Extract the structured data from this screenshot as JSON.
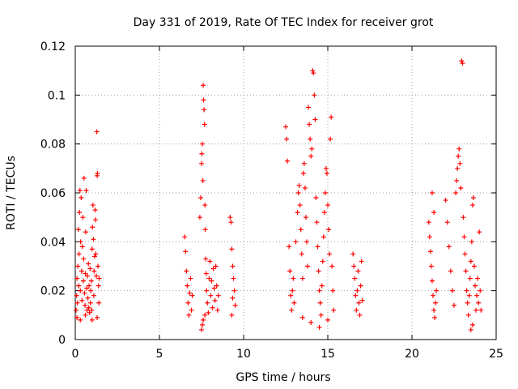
{
  "chart_data": {
    "type": "scatter",
    "title": "Day 331 of 2019, Rate Of TEC Index for receiver grot",
    "xlabel": "GPS time / hours",
    "ylabel": "ROTI / TECUs",
    "xlim": [
      0,
      25
    ],
    "ylim": [
      0,
      0.12
    ],
    "x_ticks": [
      0,
      5,
      10,
      15,
      20,
      25
    ],
    "y_ticks": [
      0,
      0.02,
      0.04,
      0.06,
      0.08,
      0.1,
      0.12
    ],
    "x_tick_labels": [
      "0",
      "5",
      "10",
      "15",
      "20",
      "25"
    ],
    "y_tick_labels": [
      "0",
      "0.02",
      "0.04",
      "0.06",
      "0.08",
      "0.1",
      "0.12"
    ],
    "grid": true,
    "marker": "+",
    "marker_color": "#ff0000",
    "series": [
      {
        "points": [
          [
            0.05,
            0.012
          ],
          [
            0.08,
            0.018
          ],
          [
            0.1,
            0.025
          ],
          [
            0.12,
            0.015
          ],
          [
            0.15,
            0.03
          ],
          [
            0.18,
            0.045
          ],
          [
            0.2,
            0.022
          ],
          [
            0.22,
            0.035
          ],
          [
            0.25,
            0.052
          ],
          [
            0.28,
            0.061
          ],
          [
            0.3,
            0.02
          ],
          [
            0.32,
            0.04
          ],
          [
            0.35,
            0.058
          ],
          [
            0.38,
            0.028
          ],
          [
            0.4,
            0.016
          ],
          [
            0.42,
            0.038
          ],
          [
            0.45,
            0.05
          ],
          [
            0.48,
            0.024
          ],
          [
            0.5,
            0.033
          ],
          [
            0.52,
            0.066
          ],
          [
            0.55,
            0.019
          ],
          [
            0.58,
            0.014
          ],
          [
            0.6,
            0.027
          ],
          [
            0.62,
            0.044
          ],
          [
            0.65,
            0.061
          ],
          [
            0.68,
            0.021
          ],
          [
            0.7,
            0.012
          ],
          [
            0.72,
            0.026
          ],
          [
            0.75,
            0.017
          ],
          [
            0.78,
            0.031
          ],
          [
            0.8,
            0.013
          ],
          [
            0.82,
            0.022
          ],
          [
            0.85,
            0.011
          ],
          [
            0.88,
            0.029
          ],
          [
            0.9,
            0.015
          ],
          [
            0.92,
            0.02
          ],
          [
            0.95,
            0.024
          ],
          [
            0.98,
            0.012
          ],
          [
            1.0,
            0.037
          ],
          [
            1.02,
            0.046
          ],
          [
            1.05,
            0.055
          ],
          [
            1.08,
            0.041
          ],
          [
            1.1,
            0.018
          ],
          [
            1.12,
            0.028
          ],
          [
            1.15,
            0.034
          ],
          [
            1.18,
            0.053
          ],
          [
            1.2,
            0.049
          ],
          [
            1.22,
            0.035
          ],
          [
            1.25,
            0.026
          ],
          [
            1.28,
            0.085
          ],
          [
            1.3,
            0.067
          ],
          [
            1.32,
            0.068
          ],
          [
            1.35,
            0.03
          ],
          [
            1.38,
            0.022
          ],
          [
            1.4,
            0.015
          ],
          [
            1.42,
            0.025
          ],
          [
            0.1,
            0.009
          ],
          [
            0.3,
            0.008
          ],
          [
            0.6,
            0.01
          ],
          [
            1.0,
            0.008
          ],
          [
            1.3,
            0.009
          ],
          [
            6.5,
            0.042
          ],
          [
            6.55,
            0.036
          ],
          [
            6.6,
            0.028
          ],
          [
            6.65,
            0.022
          ],
          [
            6.7,
            0.015
          ],
          [
            6.75,
            0.01
          ],
          [
            6.8,
            0.019
          ],
          [
            6.85,
            0.025
          ],
          [
            6.9,
            0.012
          ],
          [
            6.95,
            0.018
          ],
          [
            7.4,
            0.05
          ],
          [
            7.45,
            0.058
          ],
          [
            7.5,
            0.072
          ],
          [
            7.52,
            0.076
          ],
          [
            7.55,
            0.08
          ],
          [
            7.58,
            0.065
          ],
          [
            7.6,
            0.104
          ],
          [
            7.62,
            0.098
          ],
          [
            7.65,
            0.094
          ],
          [
            7.68,
            0.088
          ],
          [
            7.7,
            0.055
          ],
          [
            7.72,
            0.045
          ],
          [
            7.75,
            0.033
          ],
          [
            7.78,
            0.027
          ],
          [
            7.8,
            0.02
          ],
          [
            7.85,
            0.015
          ],
          [
            7.9,
            0.011
          ],
          [
            7.95,
            0.025
          ],
          [
            8.0,
            0.032
          ],
          [
            8.05,
            0.018
          ],
          [
            8.1,
            0.024
          ],
          [
            8.15,
            0.013
          ],
          [
            8.2,
            0.029
          ],
          [
            8.25,
            0.021
          ],
          [
            8.3,
            0.016
          ],
          [
            8.35,
            0.03
          ],
          [
            8.4,
            0.022
          ],
          [
            8.45,
            0.012
          ],
          [
            8.5,
            0.018
          ],
          [
            7.5,
            0.004
          ],
          [
            7.55,
            0.006
          ],
          [
            7.6,
            0.008
          ],
          [
            7.7,
            0.01
          ],
          [
            9.2,
            0.05
          ],
          [
            9.25,
            0.048
          ],
          [
            9.3,
            0.037
          ],
          [
            9.35,
            0.03
          ],
          [
            9.4,
            0.025
          ],
          [
            9.45,
            0.02
          ],
          [
            9.5,
            0.014
          ],
          [
            9.3,
            0.01
          ],
          [
            9.35,
            0.017
          ],
          [
            12.5,
            0.087
          ],
          [
            12.55,
            0.082
          ],
          [
            12.6,
            0.073
          ],
          [
            12.7,
            0.038
          ],
          [
            12.75,
            0.028
          ],
          [
            12.8,
            0.018
          ],
          [
            12.85,
            0.012
          ],
          [
            12.9,
            0.02
          ],
          [
            12.95,
            0.025
          ],
          [
            13.0,
            0.015
          ],
          [
            13.1,
            0.04
          ],
          [
            13.2,
            0.052
          ],
          [
            13.25,
            0.06
          ],
          [
            13.3,
            0.063
          ],
          [
            13.35,
            0.055
          ],
          [
            13.4,
            0.045
          ],
          [
            13.45,
            0.035
          ],
          [
            13.5,
            0.025
          ],
          [
            13.55,
            0.068
          ],
          [
            13.6,
            0.072
          ],
          [
            13.65,
            0.062
          ],
          [
            13.7,
            0.05
          ],
          [
            13.75,
            0.04
          ],
          [
            13.8,
            0.03
          ],
          [
            13.85,
            0.095
          ],
          [
            13.9,
            0.088
          ],
          [
            13.95,
            0.082
          ],
          [
            14.0,
            0.075
          ],
          [
            14.05,
            0.078
          ],
          [
            14.1,
            0.11
          ],
          [
            14.15,
            0.109
          ],
          [
            14.2,
            0.1
          ],
          [
            14.25,
            0.09
          ],
          [
            14.3,
            0.058
          ],
          [
            14.35,
            0.048
          ],
          [
            14.4,
            0.038
          ],
          [
            14.45,
            0.028
          ],
          [
            14.5,
            0.02
          ],
          [
            14.55,
            0.015
          ],
          [
            14.6,
            0.01
          ],
          [
            14.65,
            0.022
          ],
          [
            14.7,
            0.032
          ],
          [
            14.75,
            0.042
          ],
          [
            14.8,
            0.052
          ],
          [
            14.85,
            0.06
          ],
          [
            14.9,
            0.07
          ],
          [
            14.95,
            0.068
          ],
          [
            15.0,
            0.055
          ],
          [
            15.05,
            0.045
          ],
          [
            15.1,
            0.035
          ],
          [
            15.15,
            0.082
          ],
          [
            15.2,
            0.091
          ],
          [
            15.25,
            0.03
          ],
          [
            15.3,
            0.02
          ],
          [
            15.35,
            0.012
          ],
          [
            14.0,
            0.007
          ],
          [
            14.5,
            0.005
          ],
          [
            15.0,
            0.008
          ],
          [
            13.5,
            0.009
          ],
          [
            16.5,
            0.035
          ],
          [
            16.55,
            0.03
          ],
          [
            16.6,
            0.025
          ],
          [
            16.65,
            0.018
          ],
          [
            16.7,
            0.012
          ],
          [
            16.75,
            0.02
          ],
          [
            16.8,
            0.028
          ],
          [
            16.85,
            0.015
          ],
          [
            16.9,
            0.01
          ],
          [
            16.95,
            0.022
          ],
          [
            17.0,
            0.032
          ],
          [
            17.05,
            0.016
          ],
          [
            21.0,
            0.048
          ],
          [
            21.05,
            0.042
          ],
          [
            21.1,
            0.036
          ],
          [
            21.15,
            0.03
          ],
          [
            21.2,
            0.024
          ],
          [
            21.25,
            0.018
          ],
          [
            21.3,
            0.012
          ],
          [
            21.35,
            0.009
          ],
          [
            21.4,
            0.015
          ],
          [
            21.45,
            0.02
          ],
          [
            21.2,
            0.06
          ],
          [
            21.3,
            0.052
          ],
          [
            22.0,
            0.057
          ],
          [
            22.1,
            0.048
          ],
          [
            22.2,
            0.038
          ],
          [
            22.3,
            0.028
          ],
          [
            22.4,
            0.02
          ],
          [
            22.5,
            0.014
          ],
          [
            22.6,
            0.06
          ],
          [
            22.65,
            0.065
          ],
          [
            22.7,
            0.07
          ],
          [
            22.75,
            0.075
          ],
          [
            22.8,
            0.078
          ],
          [
            22.85,
            0.072
          ],
          [
            22.9,
            0.062
          ],
          [
            22.95,
            0.114
          ],
          [
            23.0,
            0.113
          ],
          [
            23.05,
            0.05
          ],
          [
            23.1,
            0.042
          ],
          [
            23.15,
            0.035
          ],
          [
            23.2,
            0.028
          ],
          [
            23.25,
            0.02
          ],
          [
            23.3,
            0.015
          ],
          [
            23.35,
            0.01
          ],
          [
            23.4,
            0.018
          ],
          [
            23.45,
            0.025
          ],
          [
            23.5,
            0.032
          ],
          [
            23.55,
            0.04
          ],
          [
            23.6,
            0.055
          ],
          [
            23.65,
            0.058
          ],
          [
            23.7,
            0.03
          ],
          [
            23.75,
            0.022
          ],
          [
            23.8,
            0.012
          ],
          [
            23.85,
            0.018
          ],
          [
            23.9,
            0.025
          ],
          [
            23.95,
            0.015
          ],
          [
            23.5,
            0.004
          ],
          [
            23.6,
            0.006
          ],
          [
            24.0,
            0.044
          ],
          [
            24.05,
            0.02
          ],
          [
            24.1,
            0.012
          ]
        ]
      }
    ]
  }
}
